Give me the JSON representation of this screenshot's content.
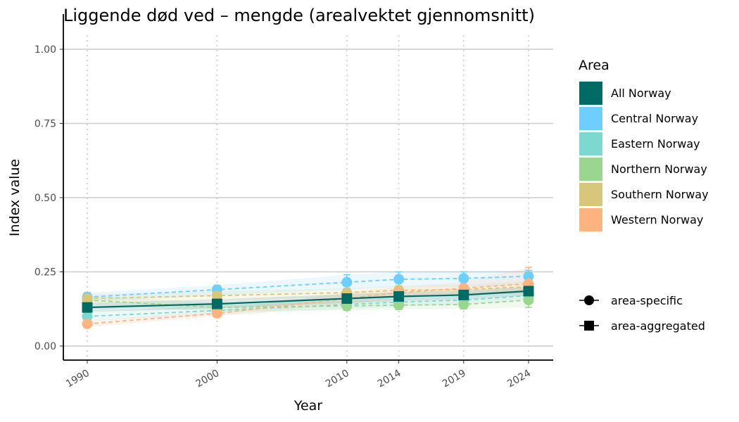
{
  "chart_data": {
    "type": "line",
    "title": "Liggende død ved – mengde (arealvektet gjennomsnitt)",
    "xlabel": "Year",
    "ylabel": "Index value",
    "x": [
      1990,
      2000,
      2010,
      2014,
      2019,
      2024
    ],
    "x_tick_labels": [
      "1990",
      "2000",
      "2010",
      "2014",
      "2019",
      "2024"
    ],
    "ylim": [
      0,
      1
    ],
    "y_ticks": [
      0,
      0.25,
      0.5,
      0.75,
      1.0
    ],
    "y_tick_labels": [
      "0.00",
      "0.25",
      "0.50",
      "0.75",
      "1.00"
    ],
    "grid": "horizontal major lines, dotted vertical lines at data years",
    "legend_placement": "right",
    "legend_title": "Area",
    "series": [
      {
        "name": "Central Norway",
        "kind": "area-specific",
        "color": "#6ECFFF",
        "values": [
          0.165,
          0.19,
          0.215,
          0.225,
          0.228,
          0.235
        ],
        "lower": [
          0.15,
          0.17,
          0.19,
          0.2,
          0.2,
          0.205
        ],
        "upper": [
          0.18,
          0.205,
          0.24,
          0.25,
          0.25,
          0.255
        ]
      },
      {
        "name": "Eastern Norway",
        "kind": "area-specific",
        "color": "#7DD8D0",
        "values": [
          0.1,
          0.12,
          0.14,
          0.148,
          0.155,
          0.17
        ],
        "lower": [
          0.085,
          0.105,
          0.125,
          0.133,
          0.14,
          0.155
        ],
        "upper": [
          0.115,
          0.135,
          0.155,
          0.163,
          0.17,
          0.185
        ]
      },
      {
        "name": "Northern Norway",
        "kind": "area-specific",
        "color": "#9BD690",
        "values": [
          0.155,
          0.13,
          0.135,
          0.138,
          0.14,
          0.155
        ],
        "lower": [
          0.14,
          0.115,
          0.12,
          0.123,
          0.125,
          0.13
        ],
        "upper": [
          0.17,
          0.145,
          0.15,
          0.153,
          0.155,
          0.175
        ]
      },
      {
        "name": "Southern Norway",
        "kind": "area-specific",
        "color": "#D8C77A",
        "values": [
          0.16,
          0.17,
          0.18,
          0.188,
          0.19,
          0.2
        ],
        "lower": [
          0.145,
          0.155,
          0.165,
          0.173,
          0.175,
          0.18
        ],
        "upper": [
          0.175,
          0.185,
          0.195,
          0.203,
          0.205,
          0.22
        ]
      },
      {
        "name": "Western Norway",
        "kind": "area-specific",
        "color": "#FFB380",
        "values": [
          0.075,
          0.11,
          0.16,
          0.18,
          0.195,
          0.21
        ],
        "lower": [
          0.065,
          0.1,
          0.14,
          0.16,
          0.175,
          0.175
        ],
        "upper": [
          0.085,
          0.12,
          0.18,
          0.2,
          0.215,
          0.265
        ]
      },
      {
        "name": "All Norway",
        "kind": "area-aggregated",
        "color": "#006B64",
        "values": [
          0.13,
          0.142,
          0.16,
          0.167,
          0.172,
          0.185
        ],
        "lower": [
          0.115,
          0.127,
          0.145,
          0.152,
          0.157,
          0.17
        ],
        "upper": [
          0.145,
          0.157,
          0.175,
          0.182,
          0.187,
          0.2
        ]
      }
    ],
    "legend_areas": [
      {
        "label": "All Norway",
        "color": "#006B64"
      },
      {
        "label": "Central Norway",
        "color": "#6ECFFF"
      },
      {
        "label": "Eastern Norway",
        "color": "#7DD8D0"
      },
      {
        "label": "Northern Norway",
        "color": "#9BD690"
      },
      {
        "label": "Southern Norway",
        "color": "#D8C77A"
      },
      {
        "label": "Western Norway",
        "color": "#FFB380"
      }
    ],
    "legend_shapes": [
      {
        "label": "area-specific",
        "shape": "circle"
      },
      {
        "label": "area-aggregated",
        "shape": "square"
      }
    ]
  }
}
